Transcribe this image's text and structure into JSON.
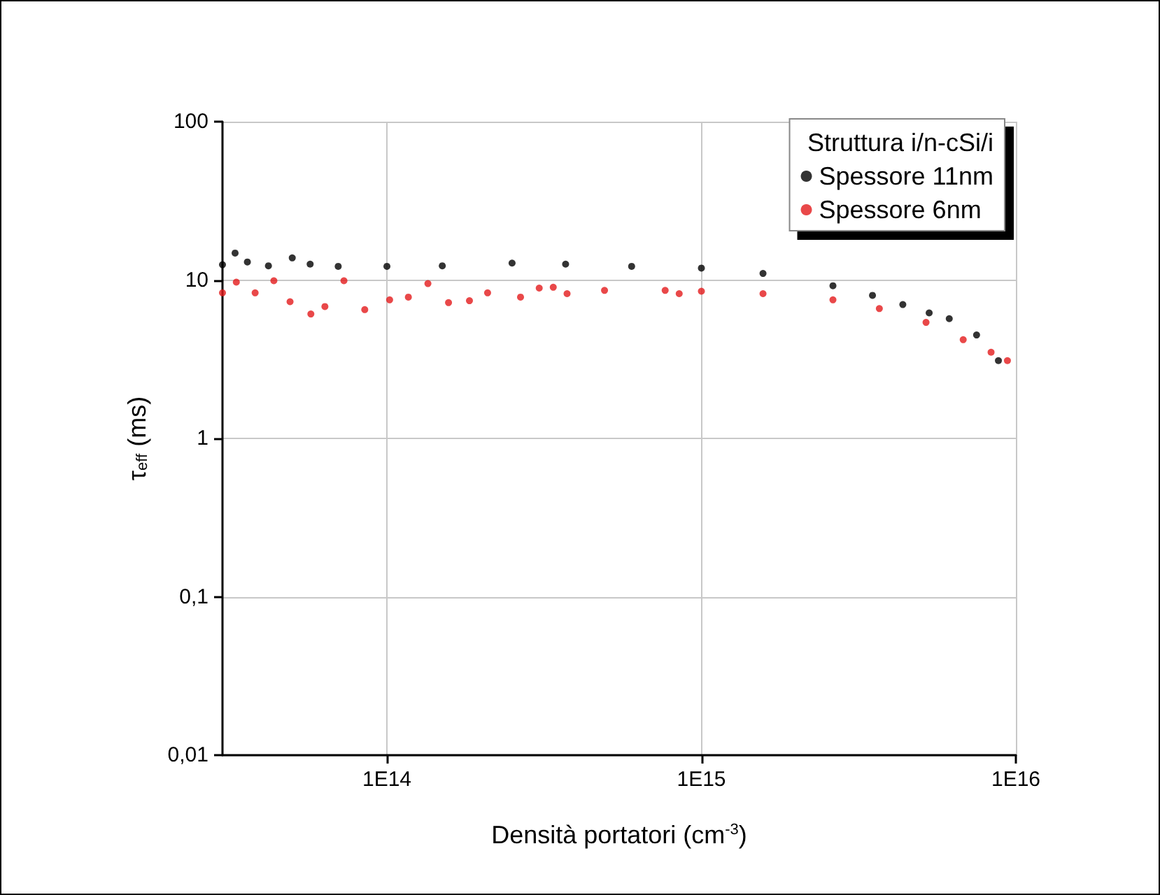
{
  "chart_data": {
    "type": "scatter",
    "xlabel": "Densità portatori (cm$^{-3}$)",
    "ylabel": "τ$_{eff}$ (ms)",
    "legend_title": "Struttura i/n-cSi/i",
    "log": "xy",
    "grid": true,
    "legend": "top right",
    "marker": "circle",
    "xlim": [
      30000000000000.0,
      1e+16
    ],
    "xticks": [
      {
        "value": 100000000000000.0,
        "label": "1E14"
      },
      {
        "value": 1000000000000000.0,
        "label": "1E15"
      },
      {
        "value": 1e+16,
        "label": "1E16"
      }
    ],
    "ylim": [
      0.01,
      100
    ],
    "yticks": [
      {
        "value": 0.01,
        "label": "0,01"
      },
      {
        "value": 0.1,
        "label": "0,1"
      },
      1,
      10,
      100
    ],
    "series": [
      {
        "name": "Spessore 11nm",
        "color": "#000000",
        "x": [
          30000000000000.0,
          32900000000000.0,
          36000000000000.0,
          42000000000000.0,
          50000000000000.0,
          57000000000000.0,
          70000000000000.0,
          100000000000000.0,
          150000000000000.0,
          250000000000000.0,
          370000000000000.0,
          600000000000000.0,
          1000000000000000.0,
          1570000000000000.0,
          2620000000000000.0,
          3500000000000000.0,
          4370000000000000.0,
          5300000000000000.0,
          6140000000000000.0,
          7500000000000000.0,
          8800000000000000.0
        ],
        "values": [
          12.5,
          14.8,
          13.0,
          12.3,
          13.8,
          12.6,
          12.2,
          12.2,
          12.3,
          12.8,
          12.6,
          12.2,
          11.9,
          11.0,
          9.2,
          8.0,
          7.0,
          6.2,
          5.7,
          4.5,
          3.1
        ]
      },
      {
        "name": "Spessore 6nm",
        "color": "#e31a1c",
        "x": [
          30000000000000.0,
          33200000000000.0,
          38100000000000.0,
          43700000000000.0,
          49200000000000.0,
          57300000000000.0,
          63500000000000.0,
          73000000000000.0,
          85000000000000.0,
          102000000000000.0,
          117000000000000.0,
          135000000000000.0,
          157000000000000.0,
          183000000000000.0,
          209000000000000.0,
          266000000000000.0,
          305000000000000.0,
          338000000000000.0,
          374000000000000.0,
          492000000000000.0,
          767000000000000.0,
          850000000000000.0,
          1000000000000000.0,
          1570000000000000.0,
          2620000000000000.0,
          3680000000000000.0,
          5180000000000000.0,
          6800000000000000.0,
          8340000000000000.0,
          9400000000000000.0
        ],
        "values": [
          8.3,
          9.7,
          8.3,
          9.9,
          7.3,
          6.1,
          6.8,
          9.9,
          6.5,
          7.5,
          7.8,
          9.5,
          7.2,
          7.4,
          8.3,
          7.8,
          8.9,
          9.0,
          8.2,
          8.6,
          8.6,
          8.2,
          8.5,
          8.2,
          7.5,
          6.6,
          5.4,
          4.2,
          3.5,
          3.1
        ]
      }
    ]
  }
}
